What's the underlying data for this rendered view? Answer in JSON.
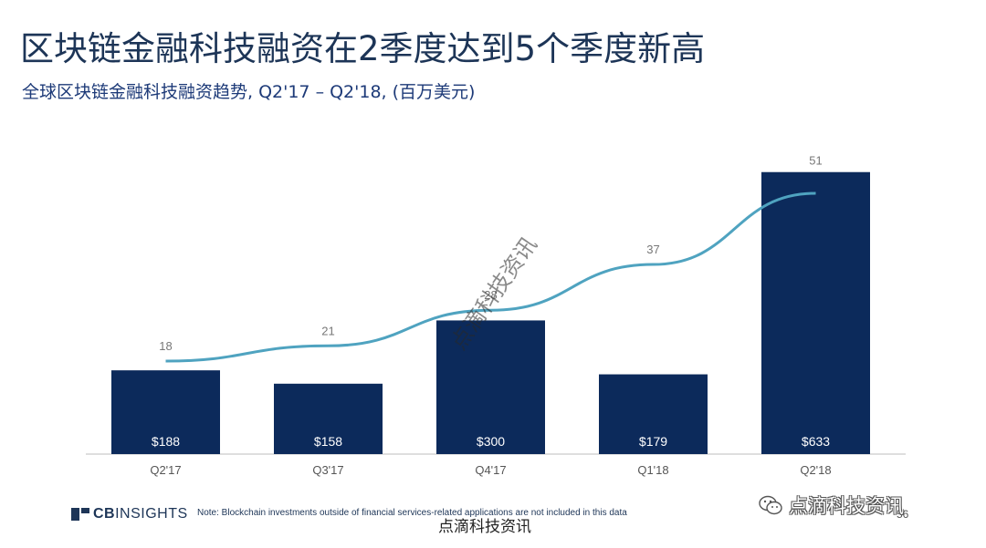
{
  "slide": {
    "title": "区块链金融科技融资在2季度达到5个季度新高",
    "subtitle": "全球区块链金融科技融资趋势, Q2'17 – Q2'18, (百万美元)",
    "footer_note": "Note: Blockchain investments outside of financial services-related applications are not included in this data",
    "page_number": "56",
    "logo": {
      "bold": "CB",
      "rest": "INSIGHTS"
    }
  },
  "watermarks": {
    "diagonal": "点滴科技资讯",
    "bottom": "点滴科技资讯",
    "brand": "点滴科技资讯",
    "brand_icon": "wechat-icon"
  },
  "colors": {
    "bar": "#0c2a5b",
    "line": "#4fa3c0",
    "title": "#1d3557",
    "text": "#555555"
  },
  "chart_data": {
    "type": "bar",
    "categories": [
      "Q2'17",
      "Q3'17",
      "Q4'17",
      "Q1'18",
      "Q2'18"
    ],
    "series": [
      {
        "type": "bar",
        "values": [
          188,
          158,
          300,
          179,
          633
        ],
        "labels": [
          "$188",
          "$158",
          "$300",
          "$179",
          "$633"
        ]
      },
      {
        "type": "line",
        "values": [
          18,
          21,
          28,
          37,
          51
        ],
        "labels": [
          "18",
          "21",
          "28",
          "37",
          "51"
        ]
      }
    ],
    "title": "",
    "xlabel": "",
    "ylabel": "",
    "grid": false,
    "legend": "none"
  }
}
